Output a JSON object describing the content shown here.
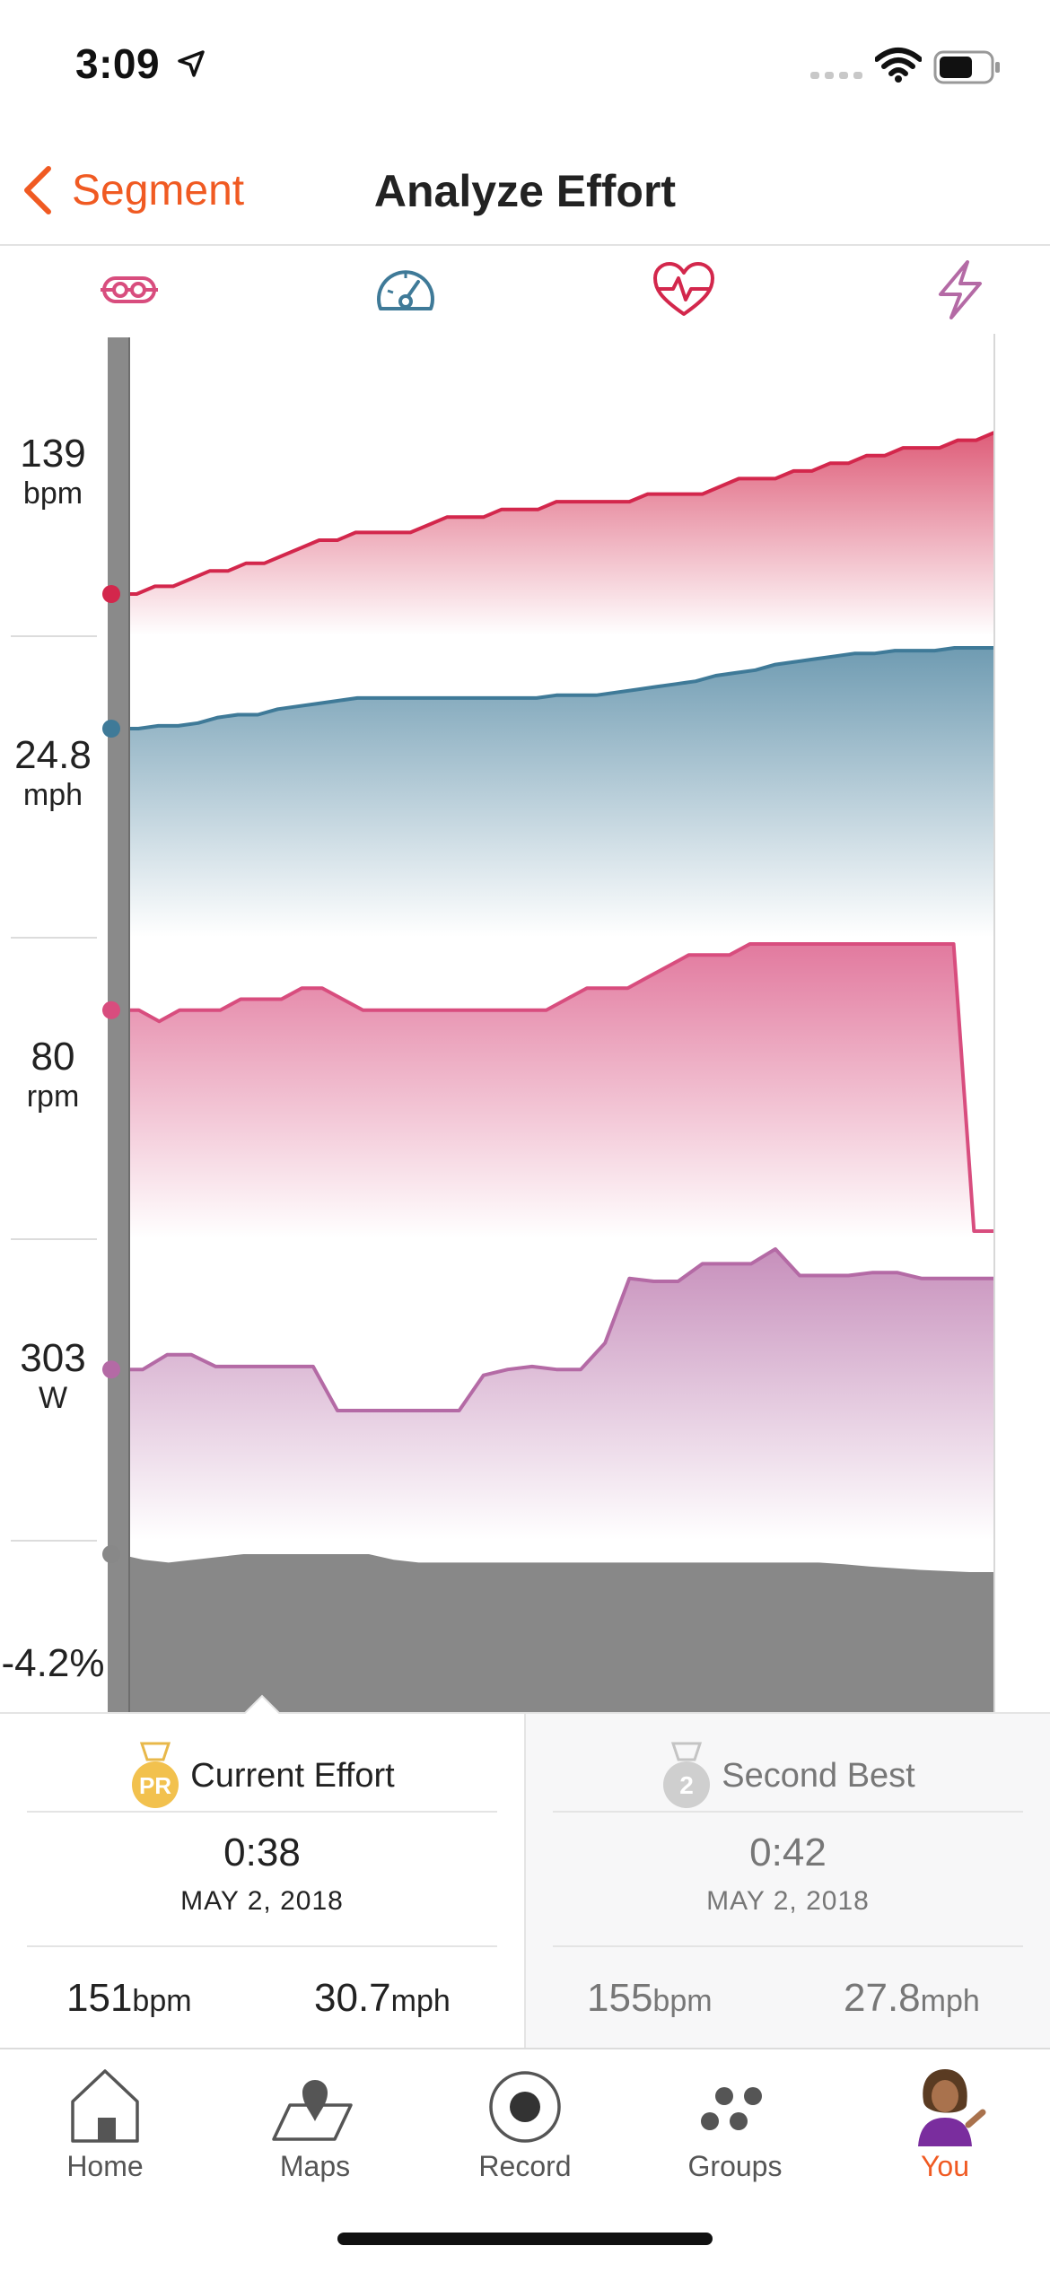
{
  "status_bar": {
    "time": "3:09"
  },
  "header": {
    "back_label": "Segment",
    "title": "Analyze Effort"
  },
  "metrics": [
    {
      "name": "cadence",
      "icon": "cadence-icon",
      "color": "#d84d7e"
    },
    {
      "name": "speed",
      "icon": "speedometer-icon",
      "color": "#3f7a98"
    },
    {
      "name": "heart rate",
      "icon": "heart-rate-icon",
      "color": "#d3274c"
    },
    {
      "name": "power",
      "icon": "lightning-icon",
      "color": "#b46aa5"
    }
  ],
  "y_labels": [
    {
      "value": "139",
      "unit": "bpm"
    },
    {
      "value": "24.8",
      "unit": "mph"
    },
    {
      "value": "80",
      "unit": "rpm"
    },
    {
      "value": "303",
      "unit": "W"
    },
    {
      "value": "-4.2%",
      "unit": ""
    }
  ],
  "chart_data": [
    {
      "type": "area",
      "series": [
        {
          "name": "bpm",
          "color": "#d3274c",
          "values": [
            131,
            131,
            132,
            132,
            133,
            134,
            134,
            135,
            135,
            136,
            137,
            138,
            138,
            139,
            139,
            139,
            139,
            140,
            141,
            141,
            141,
            142,
            142,
            142,
            143,
            143,
            143,
            143,
            143,
            144,
            144,
            144,
            144,
            145,
            146,
            146,
            146,
            147,
            147,
            148,
            148,
            149,
            149,
            150,
            150,
            150,
            151,
            151,
            152
          ]
        }
      ]
    },
    {
      "type": "area",
      "series": [
        {
          "name": "mph",
          "color": "#3f7a98",
          "values": [
            23.5,
            23.5,
            23.6,
            23.6,
            23.7,
            23.9,
            24.0,
            24.0,
            24.2,
            24.3,
            24.4,
            24.5,
            24.6,
            24.6,
            24.6,
            24.6,
            24.6,
            24.6,
            24.6,
            24.6,
            24.6,
            24.6,
            24.7,
            24.7,
            24.7,
            24.8,
            24.9,
            25.0,
            25.1,
            25.2,
            25.4,
            25.5,
            25.6,
            25.8,
            25.9,
            26.0,
            26.1,
            26.2,
            26.2,
            26.3,
            26.3,
            26.3,
            26.4,
            26.4,
            26.4
          ]
        }
      ]
    },
    {
      "type": "area",
      "series": [
        {
          "name": "rpm",
          "color": "#d84d7e",
          "values": [
            80,
            80,
            79,
            80,
            80,
            80,
            81,
            81,
            81,
            82,
            82,
            81,
            80,
            80,
            80,
            80,
            80,
            80,
            80,
            80,
            80,
            80,
            81,
            82,
            82,
            82,
            83,
            84,
            85,
            85,
            85,
            86,
            86,
            86,
            86,
            86,
            86,
            86,
            86,
            86,
            86,
            86,
            60,
            60
          ]
        }
      ]
    },
    {
      "type": "area",
      "series": [
        {
          "name": "W",
          "color": "#b46aa5",
          "values": [
            303,
            303,
            308,
            308,
            304,
            304,
            304,
            304,
            304,
            289,
            289,
            289,
            289,
            289,
            289,
            301,
            303,
            304,
            303,
            303,
            312,
            334,
            333,
            333,
            339,
            339,
            339,
            344,
            335,
            335,
            335,
            336,
            336,
            334,
            334,
            334,
            334
          ]
        }
      ]
    },
    {
      "type": "area",
      "series": [
        {
          "name": "grade",
          "color": "#888888",
          "values": [
            -4.2,
            -4.3,
            -4.35,
            -4.3,
            -4.25,
            -4.2,
            -4.2,
            -4.2,
            -4.2,
            -4.2,
            -4.2,
            -4.3,
            -4.35,
            -4.35,
            -4.35,
            -4.35,
            -4.35,
            -4.35,
            -4.35,
            -4.35,
            -4.35,
            -4.35,
            -4.35,
            -4.35,
            -4.35,
            -4.35,
            -4.35,
            -4.35,
            -4.35,
            -4.38,
            -4.42,
            -4.45,
            -4.48,
            -4.5,
            -4.52,
            -4.52
          ]
        }
      ]
    }
  ],
  "comparison": {
    "current": {
      "badge": "PR",
      "title": "Current Effort",
      "time": "0:38",
      "date": "MAY 2, 2018",
      "hr_value": "151",
      "hr_unit": "bpm",
      "speed_value": "30.7",
      "speed_unit": "mph"
    },
    "second": {
      "badge": "2",
      "title": "Second Best",
      "time": "0:42",
      "date": "MAY 2, 2018",
      "hr_value": "155",
      "hr_unit": "bpm",
      "speed_value": "27.8",
      "speed_unit": "mph"
    }
  },
  "tabs": [
    {
      "label": "Home",
      "icon": "home-icon",
      "active": false
    },
    {
      "label": "Maps",
      "icon": "map-icon",
      "active": false
    },
    {
      "label": "Record",
      "icon": "record-icon",
      "active": false
    },
    {
      "label": "Groups",
      "icon": "groups-icon",
      "active": false
    },
    {
      "label": "You",
      "icon": "avatar-icon",
      "active": true,
      "active_color": "#f05a22"
    }
  ]
}
